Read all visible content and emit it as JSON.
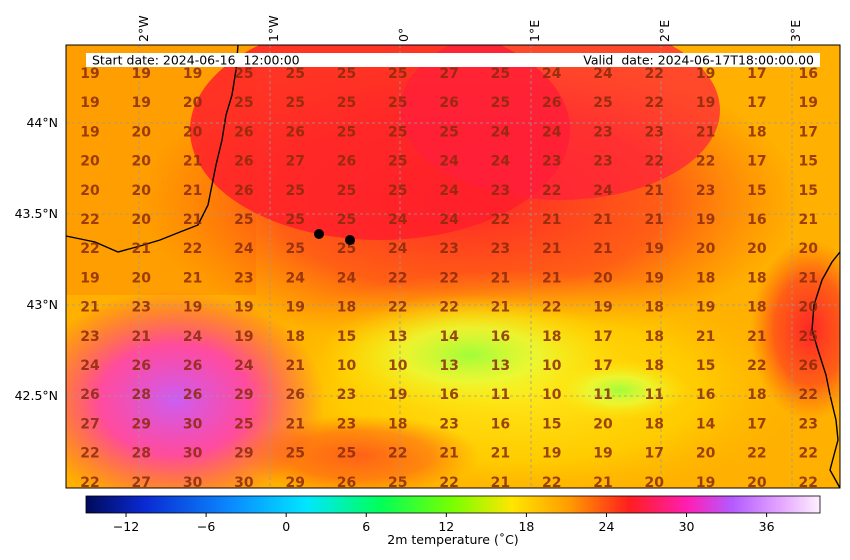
{
  "header": {
    "start_date": "Start date: 2024-06-16  12:00:00",
    "valid_date": "Valid  date: 2024-06-17T18:00:00.00"
  },
  "axes": {
    "top_ticks": [
      "2°W",
      "1°W",
      "0°",
      "1°E",
      "2°E",
      "3°E"
    ],
    "left_ticks": [
      "44°N",
      "43.5°N",
      "43°N",
      "42.5°N"
    ]
  },
  "colorbar": {
    "label": "2m temperature ($^\\circ$C)",
    "label_display": "2m temperature (˚C)",
    "ticks": [
      "−12",
      "−6",
      "0",
      "6",
      "12",
      "18",
      "24",
      "30",
      "36"
    ],
    "range": [
      -15,
      40
    ],
    "colors": [
      "#000a5a",
      "#0a2ad2",
      "#0a8cff",
      "#00e6ff",
      "#00ff5a",
      "#78ff00",
      "#ffe600",
      "#ff9a00",
      "#ff1e1e",
      "#ff1eb4",
      "#b45aff",
      "#e6aaff",
      "#fff0ff"
    ]
  },
  "map": {
    "domain": "SW France / Pyrenees",
    "stations": 2,
    "temperature_grid": [
      [
        19,
        19,
        19,
        25,
        25,
        25,
        25,
        27,
        25,
        24,
        24,
        22,
        19,
        17,
        16
      ],
      [
        19,
        19,
        20,
        25,
        25,
        25,
        25,
        26,
        25,
        26,
        25,
        22,
        19,
        17,
        19
      ],
      [
        19,
        20,
        20,
        26,
        26,
        25,
        25,
        25,
        24,
        24,
        23,
        23,
        21,
        18,
        17
      ],
      [
        20,
        20,
        21,
        26,
        27,
        26,
        25,
        24,
        24,
        23,
        23,
        22,
        22,
        17,
        15
      ],
      [
        20,
        20,
        21,
        26,
        25,
        25,
        25,
        24,
        23,
        22,
        24,
        21,
        23,
        15,
        15
      ],
      [
        22,
        20,
        21,
        25,
        25,
        25,
        24,
        24,
        22,
        21,
        21,
        21,
        19,
        16,
        21
      ],
      [
        22,
        21,
        22,
        24,
        25,
        25,
        24,
        23,
        23,
        21,
        21,
        19,
        20,
        20,
        20
      ],
      [
        19,
        20,
        21,
        23,
        24,
        24,
        22,
        22,
        21,
        21,
        20,
        19,
        18,
        18,
        21
      ],
      [
        21,
        23,
        19,
        19,
        19,
        18,
        22,
        22,
        21,
        22,
        19,
        18,
        19,
        18,
        20
      ],
      [
        23,
        21,
        24,
        19,
        18,
        15,
        13,
        14,
        16,
        18,
        17,
        18,
        21,
        21,
        25
      ],
      [
        24,
        26,
        26,
        24,
        21,
        10,
        10,
        13,
        13,
        10,
        17,
        18,
        15,
        22,
        26
      ],
      [
        26,
        28,
        26,
        29,
        26,
        23,
        19,
        16,
        11,
        10,
        11,
        11,
        16,
        18,
        22
      ],
      [
        27,
        29,
        30,
        25,
        21,
        23,
        18,
        23,
        16,
        15,
        20,
        18,
        14,
        17,
        23
      ],
      [
        22,
        28,
        30,
        29,
        25,
        25,
        22,
        21,
        21,
        19,
        19,
        17,
        20,
        22,
        22
      ],
      [
        22,
        27,
        30,
        30,
        29,
        26,
        25,
        22,
        21,
        22,
        21,
        20,
        19,
        20,
        22
      ]
    ]
  }
}
